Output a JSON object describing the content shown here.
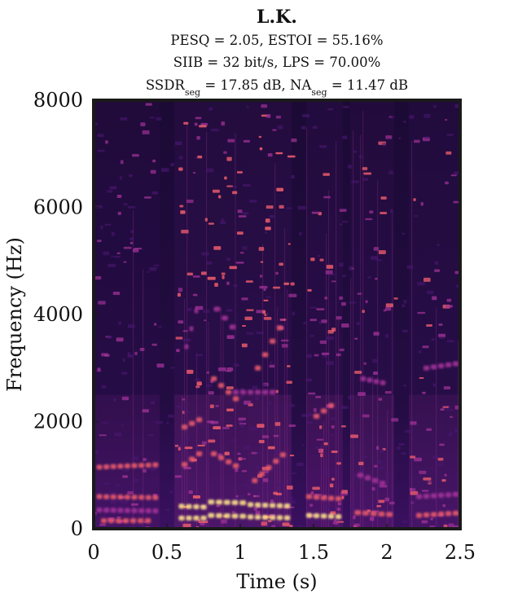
{
  "chart_data": {
    "type": "heatmap",
    "title": "L.K.",
    "subtitle_lines": [
      {
        "parts": [
          "PESQ = 2.05, ESTOI = 55.16%"
        ]
      },
      {
        "parts": [
          "SIIB = 32 bit/s, LPS = 70.00%"
        ]
      },
      {
        "parts": [
          "SSDR",
          "seg",
          " = 17.85 dB, NA",
          "seg",
          " = 11.47 dB"
        ]
      }
    ],
    "xlabel": "Time (s)",
    "ylabel": "Frequency (Hz)",
    "xlim": [
      0,
      2.5
    ],
    "ylim": [
      0,
      8000
    ],
    "xticks": [
      0,
      0.5,
      1,
      1.5,
      2,
      2.5
    ],
    "xtick_labels": [
      "0",
      "0.5",
      "1",
      "1.5",
      "2",
      "2.5"
    ],
    "yticks": [
      0,
      2000,
      4000,
      6000,
      8000
    ],
    "ytick_labels": [
      "0",
      "2000",
      "4000",
      "6000",
      "8000"
    ],
    "colormap": "magma",
    "colors": {
      "background": "#1f0a3d",
      "low": "#4a1770",
      "mid": "#a23298",
      "high": "#e85a6c",
      "peak": "#fde08a"
    },
    "grid": false,
    "segments": [
      {
        "t0": 0.0,
        "t1": 0.45,
        "energy": 0.55
      },
      {
        "t0": 0.55,
        "t1": 0.78,
        "energy": 0.95
      },
      {
        "t0": 0.78,
        "t1": 1.05,
        "energy": 0.9
      },
      {
        "t0": 1.05,
        "t1": 1.35,
        "energy": 0.95
      },
      {
        "t0": 1.45,
        "t1": 1.7,
        "energy": 0.8
      },
      {
        "t0": 1.75,
        "t1": 2.05,
        "energy": 0.75
      },
      {
        "t0": 2.15,
        "t1": 2.5,
        "energy": 0.7
      }
    ],
    "harmonics": [
      {
        "t0": 0.02,
        "t1": 0.45,
        "f0": 1150,
        "f1": 1200,
        "level": 0.8
      },
      {
        "t0": 0.02,
        "t1": 0.45,
        "f0": 600,
        "f1": 580,
        "level": 0.85
      },
      {
        "t0": 0.02,
        "t1": 0.45,
        "f0": 350,
        "f1": 330,
        "level": 0.7
      },
      {
        "t0": 0.05,
        "t1": 0.4,
        "f0": 150,
        "f1": 150,
        "level": 0.9
      },
      {
        "t0": 0.58,
        "t1": 0.78,
        "f0": 200,
        "f1": 200,
        "level": 1.0
      },
      {
        "t0": 0.58,
        "t1": 0.78,
        "f0": 420,
        "f1": 400,
        "level": 1.0
      },
      {
        "t0": 0.6,
        "t1": 0.75,
        "f0": 1200,
        "f1": 1500,
        "level": 0.9
      },
      {
        "t0": 0.6,
        "t1": 0.75,
        "f0": 1900,
        "f1": 2100,
        "level": 0.85
      },
      {
        "t0": 0.62,
        "t1": 0.72,
        "f0": 3400,
        "f1": 4400,
        "level": 0.75
      },
      {
        "t0": 0.78,
        "t1": 1.05,
        "f0": 250,
        "f1": 230,
        "level": 1.0
      },
      {
        "t0": 0.78,
        "t1": 1.05,
        "f0": 500,
        "f1": 480,
        "level": 0.95
      },
      {
        "t0": 0.8,
        "t1": 1.0,
        "f0": 1400,
        "f1": 1100,
        "level": 0.9
      },
      {
        "t0": 0.8,
        "t1": 1.0,
        "f0": 2800,
        "f1": 2300,
        "level": 0.8
      },
      {
        "t0": 0.82,
        "t1": 0.98,
        "f0": 4100,
        "f1": 3600,
        "level": 0.7
      },
      {
        "t0": 1.05,
        "t1": 1.35,
        "f0": 220,
        "f1": 200,
        "level": 1.0
      },
      {
        "t0": 1.05,
        "t1": 1.35,
        "f0": 450,
        "f1": 420,
        "level": 1.0
      },
      {
        "t0": 1.08,
        "t1": 1.32,
        "f0": 900,
        "f1": 1500,
        "level": 0.9
      },
      {
        "t0": 1.1,
        "t1": 1.3,
        "f0": 3000,
        "f1": 4000,
        "level": 0.85
      },
      {
        "t0": 0.95,
        "t1": 1.25,
        "f0": 2550,
        "f1": 2550,
        "level": 0.6
      },
      {
        "t0": 1.45,
        "t1": 1.7,
        "f0": 250,
        "f1": 220,
        "level": 0.95
      },
      {
        "t0": 1.45,
        "t1": 1.7,
        "f0": 600,
        "f1": 550,
        "level": 0.85
      },
      {
        "t0": 1.5,
        "t1": 1.65,
        "f0": 2100,
        "f1": 2400,
        "level": 0.8
      },
      {
        "t0": 1.78,
        "t1": 2.05,
        "f0": 300,
        "f1": 260,
        "level": 0.85
      },
      {
        "t0": 1.8,
        "t1": 2.0,
        "f0": 1000,
        "f1": 800,
        "level": 0.7
      },
      {
        "t0": 1.82,
        "t1": 2.0,
        "f0": 2800,
        "f1": 2700,
        "level": 0.65
      },
      {
        "t0": 2.2,
        "t1": 2.5,
        "f0": 250,
        "f1": 300,
        "level": 0.85
      },
      {
        "t0": 2.2,
        "t1": 2.5,
        "f0": 600,
        "f1": 650,
        "level": 0.75
      },
      {
        "t0": 2.25,
        "t1": 2.5,
        "f0": 3000,
        "f1": 3100,
        "level": 0.6
      }
    ]
  }
}
